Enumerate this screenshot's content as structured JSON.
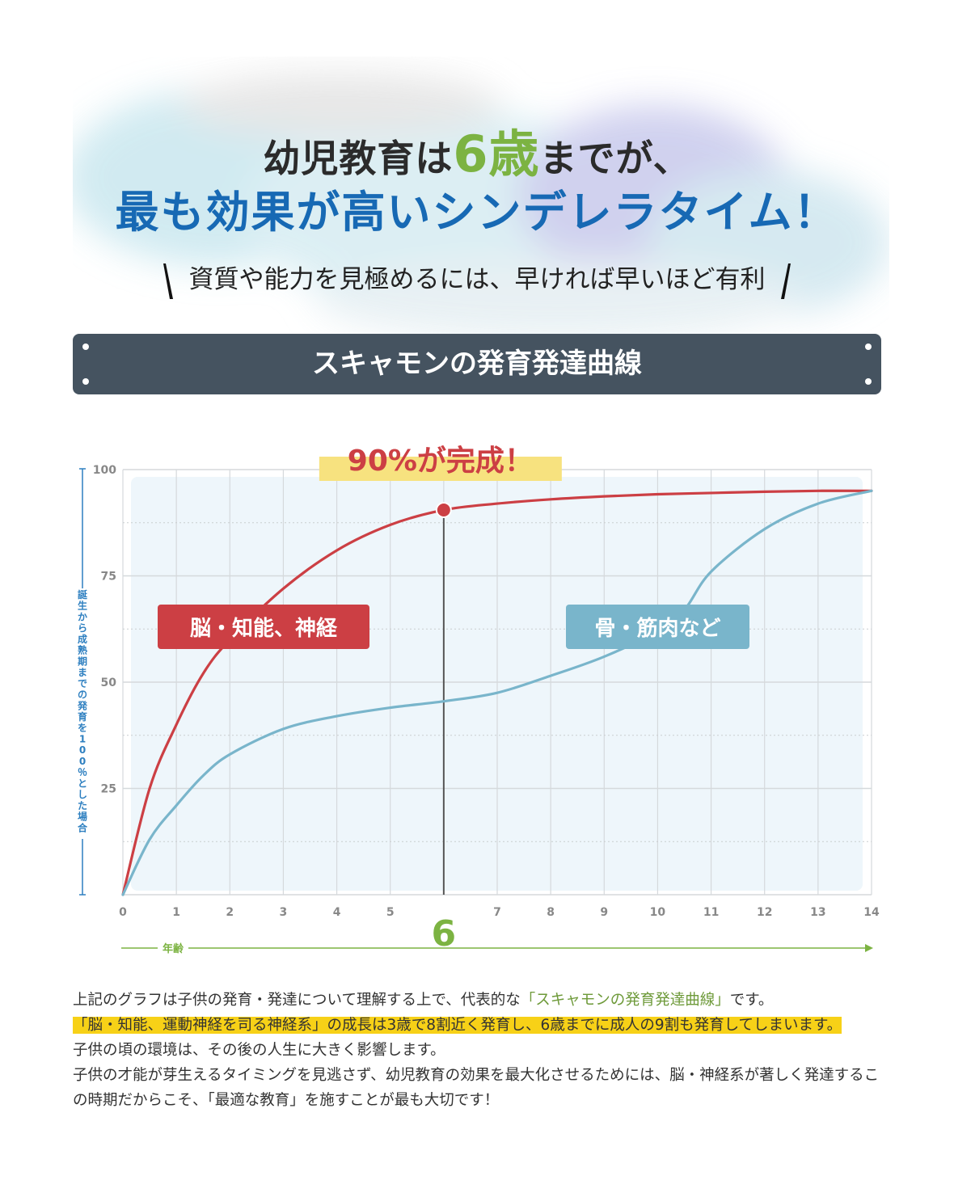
{
  "heading": {
    "line1_before": "幼児教育は",
    "line1_accent": "6歳",
    "line1_after": "までが、",
    "line2": "最も効果が高いシンデレラタイム！",
    "subtitle": "資質や能力を見極めるには、早ければ早いほど有利"
  },
  "banner": {
    "title": "スキャモンの発育発達曲線"
  },
  "chart_data": {
    "type": "line",
    "xlabel": "年齢",
    "ylabel": "誕生から成熟期までの発育を100％とした場合",
    "xlim": [
      0,
      14
    ],
    "ylim": [
      0,
      100
    ],
    "x_ticks": [
      "0",
      "1",
      "2",
      "3",
      "4",
      "5",
      "6",
      "7",
      "8",
      "9",
      "10",
      "11",
      "12",
      "13",
      "14"
    ],
    "y_ticks": [
      "25",
      "50",
      "75",
      "100"
    ],
    "grid": true,
    "highlight_x": 6,
    "highlight_x_label": "6",
    "callout": "90%が完成！",
    "callout_point": {
      "x": 6,
      "y": 90.5
    },
    "series": [
      {
        "name": "脳・知能、神経",
        "color": "#cc3f44",
        "points": [
          [
            0,
            0
          ],
          [
            0.5,
            25
          ],
          [
            1,
            40
          ],
          [
            1.5,
            52
          ],
          [
            2,
            60
          ],
          [
            3,
            72
          ],
          [
            4,
            81
          ],
          [
            5,
            87
          ],
          [
            6,
            90.5
          ],
          [
            7,
            92
          ],
          [
            8,
            93
          ],
          [
            9,
            93.7
          ],
          [
            10,
            94.2
          ],
          [
            11,
            94.5
          ],
          [
            12,
            94.8
          ],
          [
            13,
            95
          ],
          [
            14,
            95
          ]
        ]
      },
      {
        "name": "骨・筋肉など",
        "color": "#79b5cb",
        "points": [
          [
            0,
            0
          ],
          [
            0.5,
            13
          ],
          [
            1,
            21
          ],
          [
            1.5,
            28
          ],
          [
            2,
            33
          ],
          [
            3,
            39
          ],
          [
            4,
            42
          ],
          [
            5,
            44
          ],
          [
            6,
            45.5
          ],
          [
            7,
            47.5
          ],
          [
            8,
            51.5
          ],
          [
            9,
            56
          ],
          [
            10,
            62
          ],
          [
            10.5,
            67
          ],
          [
            11,
            76
          ],
          [
            12,
            86
          ],
          [
            13,
            92
          ],
          [
            14,
            95
          ]
        ]
      }
    ]
  },
  "description": {
    "p1_before": "上記のグラフは子供の発育・発達について理解する上で、代表的な",
    "p1_highlight": "「スキャモンの発育発達曲線」",
    "p1_after": "です。",
    "p2_marked": "「脳・知能、運動神経を司る神経系」の成長は3歳で8割近く発育し、6歳までに成人の9割も発育してしまいます。",
    "p3": "子供の頃の環境は、その後の人生に大きく影響します。",
    "p4": "子供の才能が芽生えるタイミングを見逃さず、幼児教育の効果を最大化させるためには、脳・神経系が著しく発達するこの時期だからこそ、「最適な教育」を施すことが最も大切です！"
  }
}
